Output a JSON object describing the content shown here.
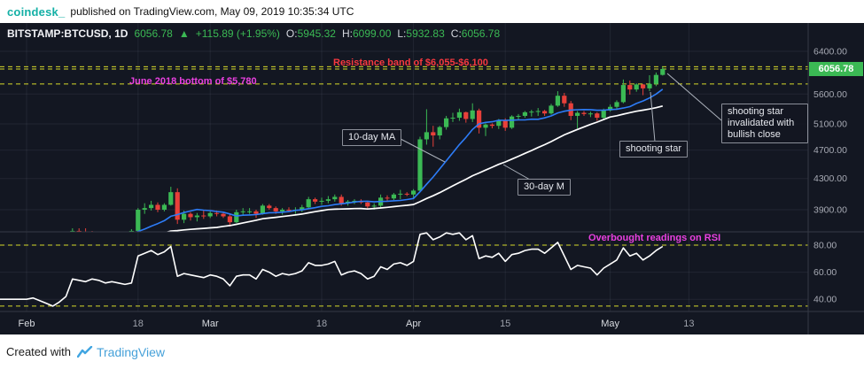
{
  "topbar": {
    "brand": "coindesk_",
    "text": "published on TradingView.com, May 09, 2019 10:35:34 UTC"
  },
  "symbol_bar": {
    "symbol": "BITSTAMP:BTCUSD, 1D",
    "last": "6056.78",
    "up_arrow": "▲",
    "change": "+115.89 (+1.95%)",
    "ohlc": [
      {
        "label": "O:",
        "value": "5945.32"
      },
      {
        "label": "H:",
        "value": "6099.00"
      },
      {
        "label": "L:",
        "value": "5932.83"
      },
      {
        "label": "C:",
        "value": "6056.78"
      }
    ]
  },
  "annotations": {
    "resistance": "Resistance band of $6,055-$6,100",
    "june_bottom": "June 2018 bottom of $5,780",
    "overbought": "Overbought readings on RSI",
    "ma10": "10-day MA",
    "ma30": "30-day M",
    "shooting_star": "shooting star",
    "invalidated": "shooting star invalidated with bullish close"
  },
  "footer": {
    "prefix": "Created with",
    "brand": "TradingView"
  },
  "colors": {
    "up": "#3bb954",
    "down": "#e8403a",
    "ma10": "#2d7cf7",
    "ma30": "#ffffff",
    "rsi": "#ffffff",
    "level": "#d6d92b",
    "resistance_text": "#f7383f",
    "magenta_text": "#e940e0",
    "badge_bg": "#3bb954",
    "brand_teal": "#14b0a6",
    "tv_blue": "#46a1d9",
    "background": "#131722"
  },
  "chart_data": [
    {
      "type": "candlestick",
      "title": "BITSTAMP:BTCUSD 1D",
      "x_start_date": "2019-02-01",
      "x_tick_labels": [
        "Feb",
        "18",
        "Mar",
        "18",
        "Apr",
        "15",
        "May",
        "13"
      ],
      "x_tick_day_indices": [
        0,
        17,
        28,
        45,
        59,
        73,
        89,
        101
      ],
      "y_ticks": [
        6400,
        5600,
        5100,
        4700,
        4300,
        3900
      ],
      "y_scale": "log",
      "grid": true,
      "last_price": 6056.78,
      "levels": [
        6100,
        6055,
        5780
      ],
      "overlays": [
        {
          "name": "10-day MA",
          "window": 10
        },
        {
          "name": "30-day MA",
          "window": 30
        }
      ],
      "ohlc": [
        [
          3440,
          3480,
          3410,
          3460
        ],
        [
          3460,
          3490,
          3430,
          3470
        ],
        [
          3470,
          3480,
          3410,
          3430
        ],
        [
          3430,
          3470,
          3390,
          3410
        ],
        [
          3410,
          3440,
          3380,
          3400
        ],
        [
          3400,
          3430,
          3360,
          3390
        ],
        [
          3390,
          3430,
          3370,
          3410
        ],
        [
          3410,
          3680,
          3400,
          3650
        ],
        [
          3650,
          3680,
          3600,
          3640
        ],
        [
          3640,
          3680,
          3610,
          3630
        ],
        [
          3630,
          3650,
          3570,
          3600
        ],
        [
          3600,
          3640,
          3580,
          3620
        ],
        [
          3620,
          3640,
          3560,
          3590
        ],
        [
          3590,
          3620,
          3550,
          3580
        ],
        [
          3580,
          3620,
          3560,
          3600
        ],
        [
          3600,
          3640,
          3580,
          3620
        ],
        [
          3620,
          3670,
          3600,
          3650
        ],
        [
          3650,
          3920,
          3640,
          3900
        ],
        [
          3900,
          3980,
          3850,
          3920
        ],
        [
          3920,
          4010,
          3890,
          3960
        ],
        [
          3960,
          3990,
          3870,
          3900
        ],
        [
          3900,
          3980,
          3880,
          3960
        ],
        [
          3960,
          4190,
          3950,
          4120
        ],
        [
          4120,
          4170,
          3730,
          3780
        ],
        [
          3780,
          3890,
          3740,
          3850
        ],
        [
          3850,
          3870,
          3770,
          3810
        ],
        [
          3810,
          3860,
          3760,
          3830
        ],
        [
          3830,
          3890,
          3790,
          3820
        ],
        [
          3820,
          3880,
          3800,
          3860
        ],
        [
          3860,
          3890,
          3820,
          3850
        ],
        [
          3850,
          3870,
          3800,
          3820
        ],
        [
          3820,
          3850,
          3700,
          3750
        ],
        [
          3750,
          3900,
          3740,
          3870
        ],
        [
          3870,
          3920,
          3830,
          3880
        ],
        [
          3880,
          3920,
          3850,
          3880
        ],
        [
          3880,
          3900,
          3800,
          3850
        ],
        [
          3850,
          3970,
          3840,
          3950
        ],
        [
          3950,
          3970,
          3900,
          3920
        ],
        [
          3920,
          3940,
          3850,
          3880
        ],
        [
          3880,
          3920,
          3840,
          3900
        ],
        [
          3900,
          3930,
          3870,
          3890
        ],
        [
          3890,
          3930,
          3850,
          3900
        ],
        [
          3900,
          3960,
          3870,
          3930
        ],
        [
          3930,
          4060,
          3920,
          4030
        ],
        [
          4030,
          4050,
          3970,
          4000
        ],
        [
          4000,
          4050,
          3960,
          4010
        ],
        [
          4010,
          4070,
          3980,
          4030
        ],
        [
          4030,
          4090,
          4000,
          4060
        ],
        [
          4060,
          4090,
          3950,
          3980
        ],
        [
          3980,
          4020,
          3950,
          4000
        ],
        [
          4000,
          4030,
          3970,
          4010
        ],
        [
          4010,
          4030,
          3970,
          3990
        ],
        [
          3990,
          4010,
          3910,
          3940
        ],
        [
          3940,
          3980,
          3900,
          3950
        ],
        [
          3950,
          4090,
          3930,
          4050
        ],
        [
          4050,
          4080,
          4010,
          4040
        ],
        [
          4040,
          4110,
          4020,
          4090
        ],
        [
          4090,
          4150,
          4030,
          4100
        ],
        [
          4100,
          4120,
          4070,
          4090
        ],
        [
          4090,
          4160,
          4040,
          4140
        ],
        [
          4140,
          4900,
          4130,
          4860
        ],
        [
          4860,
          5340,
          4780,
          4970
        ],
        [
          4970,
          5070,
          4750,
          4920
        ],
        [
          4920,
          5070,
          4860,
          5050
        ],
        [
          5050,
          5230,
          5010,
          5190
        ],
        [
          5190,
          5280,
          5130,
          5200
        ],
        [
          5200,
          5350,
          5150,
          5290
        ],
        [
          5290,
          5300,
          5120,
          5180
        ],
        [
          5180,
          5440,
          5130,
          5320
        ],
        [
          5320,
          5350,
          4950,
          5040
        ],
        [
          5040,
          5110,
          4910,
          5090
        ],
        [
          5090,
          5110,
          5030,
          5070
        ],
        [
          5070,
          5180,
          5020,
          5160
        ],
        [
          5160,
          5190,
          4990,
          5040
        ],
        [
          5040,
          5240,
          5020,
          5220
        ],
        [
          5220,
          5260,
          5170,
          5230
        ],
        [
          5230,
          5310,
          5200,
          5290
        ],
        [
          5290,
          5330,
          5220,
          5300
        ],
        [
          5300,
          5360,
          5230,
          5310
        ],
        [
          5310,
          5330,
          5230,
          5270
        ],
        [
          5270,
          5430,
          5250,
          5400
        ],
        [
          5400,
          5650,
          5380,
          5570
        ],
        [
          5570,
          5620,
          5380,
          5440
        ],
        [
          5440,
          5480,
          5160,
          5230
        ],
        [
          5230,
          5310,
          5030,
          5280
        ],
        [
          5280,
          5310,
          5230,
          5260
        ],
        [
          5260,
          5300,
          5210,
          5270
        ],
        [
          5270,
          5290,
          5150,
          5200
        ],
        [
          5200,
          5350,
          5160,
          5320
        ],
        [
          5320,
          5420,
          5300,
          5380
        ],
        [
          5380,
          5490,
          5330,
          5460
        ],
        [
          5460,
          5860,
          5440,
          5760
        ],
        [
          5760,
          5840,
          5590,
          5680
        ],
        [
          5680,
          5790,
          5640,
          5770
        ],
        [
          5770,
          5780,
          5580,
          5700
        ],
        [
          5700,
          5940,
          5650,
          5780
        ],
        [
          5780,
          5990,
          5740,
          5945
        ],
        [
          5945.32,
          6099.0,
          5932.83,
          6056.78
        ]
      ]
    },
    {
      "type": "line",
      "title": "RSI",
      "y_ticks": [
        80,
        60,
        40
      ],
      "levels": [
        80,
        35
      ],
      "values": [
        40,
        41,
        39,
        37,
        35,
        38,
        42,
        55,
        54,
        53,
        55,
        54,
        52,
        53,
        52,
        51,
        52,
        72,
        74,
        76,
        73,
        75,
        79,
        57,
        59,
        58,
        57,
        56,
        58,
        57,
        55,
        50,
        57,
        58,
        58,
        55,
        62,
        60,
        57,
        59,
        58,
        59,
        61,
        67,
        65,
        65,
        66,
        68,
        58,
        60,
        61,
        59,
        55,
        57,
        64,
        62,
        66,
        67,
        65,
        68,
        88,
        89,
        84,
        86,
        89,
        88,
        89,
        84,
        87,
        70,
        72,
        71,
        74,
        68,
        73,
        74,
        76,
        77,
        77,
        74,
        78,
        82,
        72,
        62,
        65,
        64,
        63,
        58,
        63,
        66,
        69,
        78,
        72,
        74,
        69,
        72,
        76,
        79
      ]
    }
  ]
}
